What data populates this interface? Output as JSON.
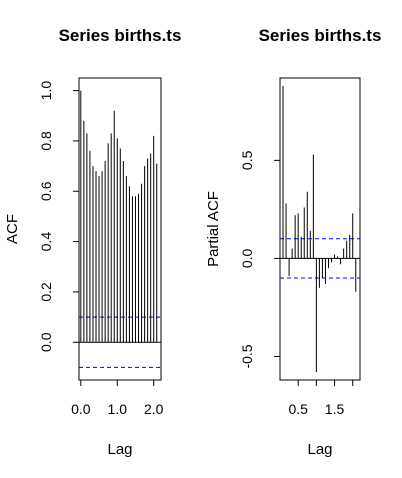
{
  "chart_data": [
    {
      "type": "bar",
      "title": "Series  births.ts",
      "xlabel": "Lag",
      "ylabel": "ACF",
      "xlim": [
        -0.05,
        2.2
      ],
      "ylim": [
        -0.15,
        1.05
      ],
      "xticks": [
        0.0,
        1.0,
        2.0
      ],
      "xtick_labels": [
        "0.0",
        "1.0",
        "2.0"
      ],
      "yticks": [
        0.0,
        0.2,
        0.4,
        0.6,
        0.8,
        1.0
      ],
      "ytick_labels": [
        "0.0",
        "0.2",
        "0.4",
        "0.6",
        "0.8",
        "1.0"
      ],
      "conf_limit": 0.1,
      "conf_color": "#0000ff",
      "x": [
        0.0,
        0.0833,
        0.1667,
        0.25,
        0.3333,
        0.4167,
        0.5,
        0.5833,
        0.6667,
        0.75,
        0.8333,
        0.9167,
        1.0,
        1.0833,
        1.1667,
        1.25,
        1.3333,
        1.4167,
        1.5,
        1.5833,
        1.6667,
        1.75,
        1.8333,
        1.9167,
        2.0,
        2.0833
      ],
      "values": [
        1.0,
        0.88,
        0.83,
        0.76,
        0.7,
        0.68,
        0.66,
        0.68,
        0.72,
        0.79,
        0.83,
        0.92,
        0.81,
        0.77,
        0.72,
        0.66,
        0.62,
        0.58,
        0.58,
        0.59,
        0.63,
        0.7,
        0.73,
        0.75,
        0.82,
        0.71
      ]
    },
    {
      "type": "bar",
      "title": "Series  births.ts",
      "xlabel": "Lag",
      "ylabel": "Partial ACF",
      "xlim": [
        0.0,
        2.2
      ],
      "ylim": [
        -0.62,
        0.92
      ],
      "xticks": [
        0.5,
        1.0,
        1.5,
        2.0
      ],
      "xtick_labels": [
        "0.5",
        "",
        "1.5",
        ""
      ],
      "yticks": [
        -0.5,
        0.0,
        0.5
      ],
      "ytick_labels": [
        "-0.5",
        "0.0",
        "0.5"
      ],
      "conf_limit": 0.1,
      "conf_color": "#0000ff",
      "x": [
        0.0833,
        0.1667,
        0.25,
        0.3333,
        0.4167,
        0.5,
        0.5833,
        0.6667,
        0.75,
        0.8333,
        0.9167,
        1.0,
        1.0833,
        1.1667,
        1.25,
        1.3333,
        1.4167,
        1.5,
        1.5833,
        1.6667,
        1.75,
        1.8333,
        1.9167,
        2.0,
        2.0833
      ],
      "values": [
        0.88,
        0.28,
        -0.09,
        0.05,
        0.22,
        0.23,
        0.11,
        0.26,
        0.34,
        0.14,
        0.53,
        -0.58,
        -0.15,
        -0.1,
        -0.13,
        -0.05,
        -0.02,
        0.02,
        0.01,
        -0.03,
        0.05,
        0.09,
        0.12,
        0.23,
        -0.17
      ]
    }
  ]
}
